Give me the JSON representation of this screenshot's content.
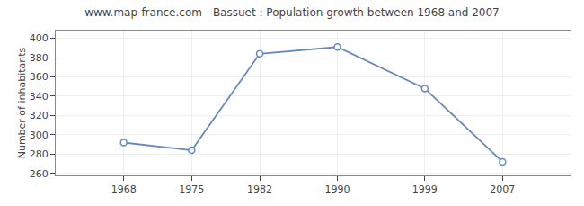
{
  "chart_data": {
    "type": "line",
    "title": "www.map-france.com - Bassuet : Population growth between 1968 and 2007",
    "ylabel": "Number of inhabitants",
    "x": [
      1968,
      1975,
      1982,
      1990,
      1999,
      2007
    ],
    "values": [
      292,
      284,
      384,
      391,
      348,
      272
    ],
    "color": "#6688bb",
    "marker": "circle",
    "line_style": "solid",
    "xlim": [
      1961,
      2014
    ],
    "ylim": [
      258,
      408
    ],
    "xticks": [
      1968,
      1975,
      1982,
      1990,
      1999,
      2007
    ],
    "yticks": [
      260,
      280,
      300,
      320,
      340,
      360,
      380,
      400
    ],
    "grid": true
  }
}
